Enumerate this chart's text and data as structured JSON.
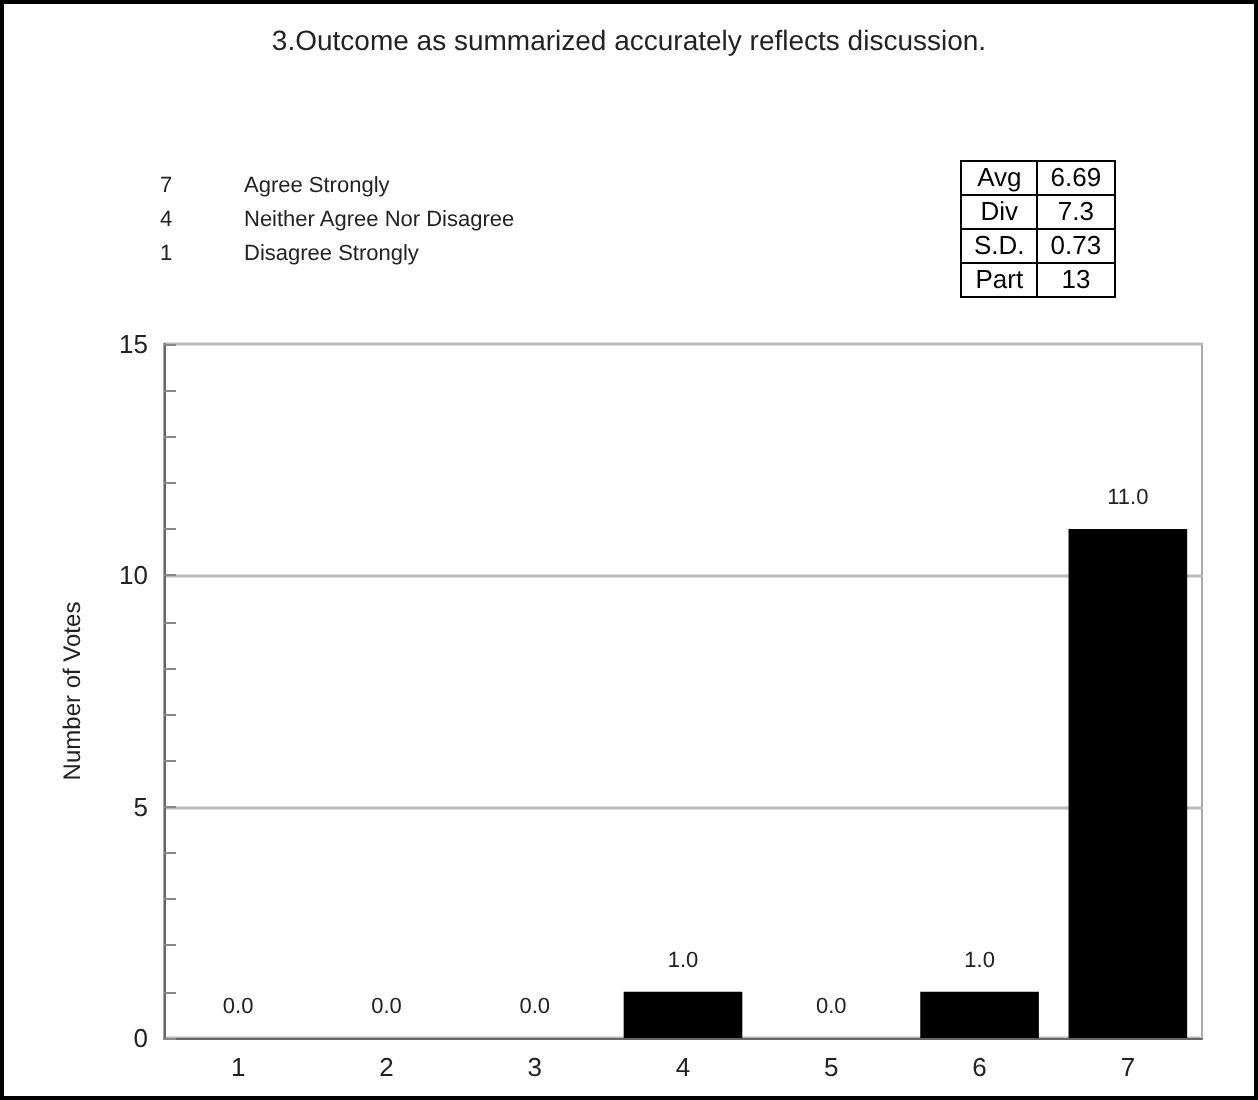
{
  "chart_data": {
    "type": "bar",
    "title": "3.Outcome as summarized accurately reflects discussion.",
    "ylabel": "Number of Votes",
    "categories": [
      "1",
      "2",
      "3",
      "4",
      "5",
      "6",
      "7"
    ],
    "values": [
      0,
      0,
      0,
      1,
      0,
      1,
      11
    ],
    "color": "#000000",
    "value_labels": [
      "0.0",
      "0.0",
      "0.0",
      "1.0",
      "0.0",
      "1.0",
      "11.0"
    ],
    "ylim": [
      0,
      15
    ],
    "yticks": [
      0,
      {
        "value": 1,
        "label": null
      },
      {
        "value": 2,
        "label": null
      },
      {
        "value": 3,
        "label": null
      },
      {
        "value": 4,
        "label": null
      },
      5,
      {
        "value": 6,
        "label": null
      },
      {
        "value": 7,
        "label": null
      },
      {
        "value": 8,
        "label": null
      },
      {
        "value": 9,
        "label": null
      },
      10,
      {
        "value": 11,
        "label": null
      },
      {
        "value": 12,
        "label": null
      },
      {
        "value": 13,
        "label": null
      },
      {
        "value": 14,
        "label": null
      },
      15
    ],
    "grid": "y",
    "annotations": [
      "7 Agree Strongly",
      "4 Neither Agree Nor Disagree",
      "1 Disagree Strongly",
      "Avg 6.69",
      "Div 7.3",
      "S.D. 0.73",
      "Part 13"
    ]
  }
}
